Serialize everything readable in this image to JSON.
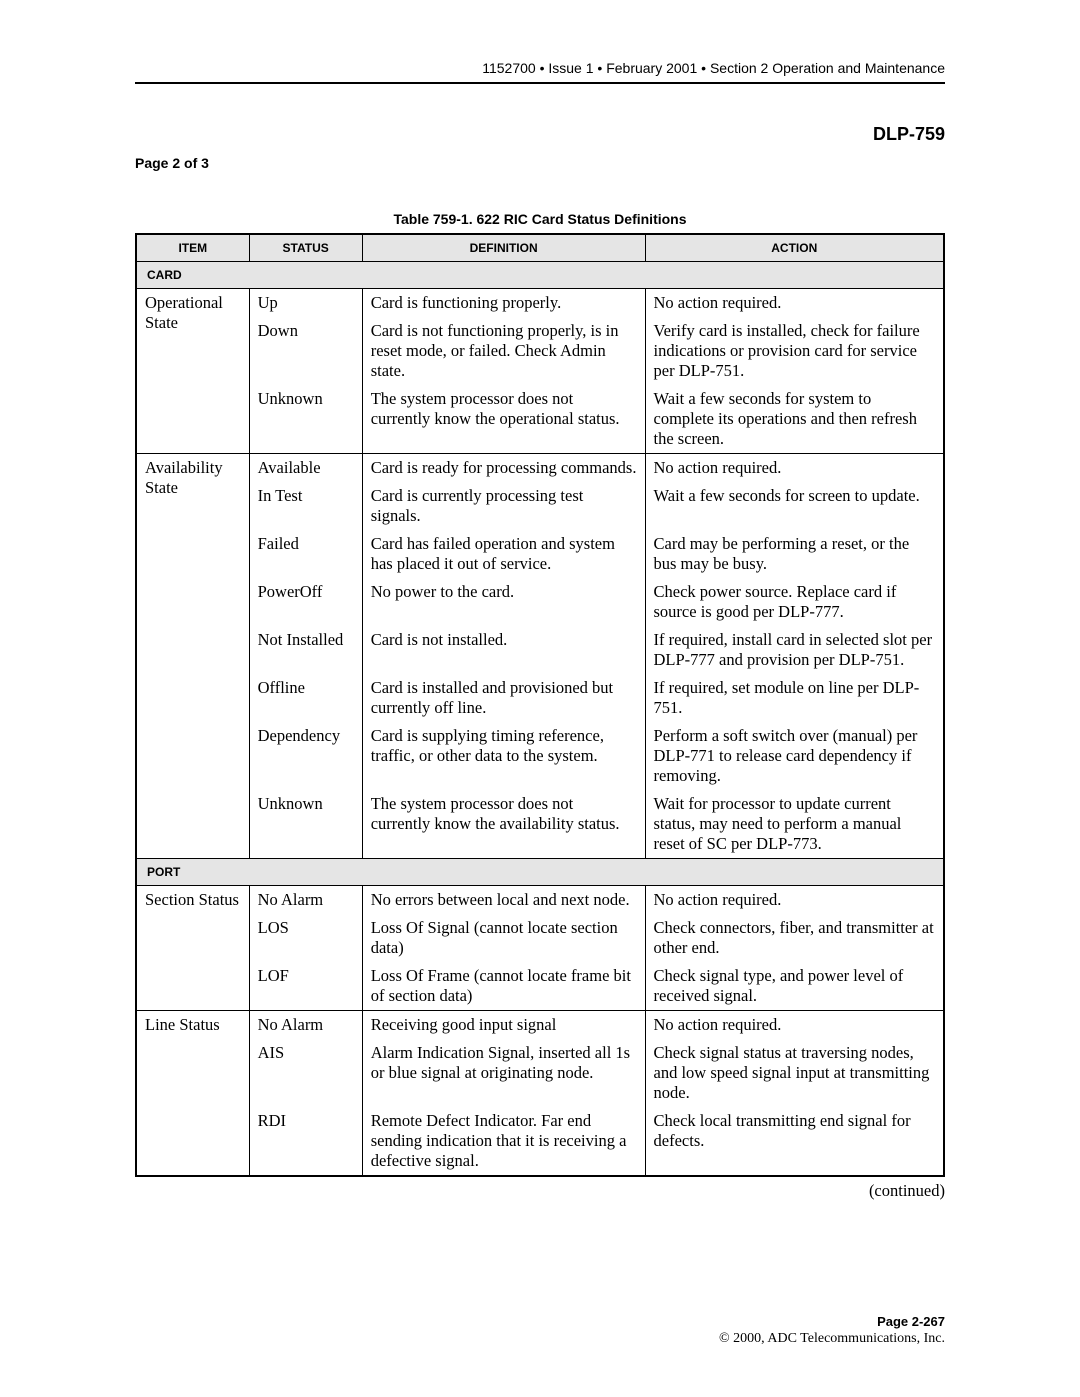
{
  "header": {
    "doc_num": "1152700",
    "issue": "Issue 1",
    "date": "February 2001",
    "section": "Section 2 Operation and Maintenance"
  },
  "dlp_code": "DLP-759",
  "page_x_of_y": "Page 2 of 3",
  "table_caption": "Table 759-1. 622 RIC Card Status Definitions",
  "columns": {
    "item": "ITEM",
    "status": "STATUS",
    "definition": "DEFINITION",
    "action": "ACTION"
  },
  "sections": {
    "card": "CARD",
    "port": "PORT"
  },
  "rows": {
    "card": {
      "op_state": {
        "item": "Operational State",
        "r1": {
          "status": "Up",
          "def": "Card is functioning properly.",
          "action": "No action required."
        },
        "r2": {
          "status": "Down",
          "def": "Card is not functioning properly, is in reset mode, or failed. Check Admin state.",
          "action": "Verify card is installed, check for failure indications or provision card for service per DLP-751."
        },
        "r3": {
          "status": "Unknown",
          "def": "The system processor does not currently know the operational status.",
          "action": "Wait a few seconds for system to complete its operations and then refresh the screen."
        }
      },
      "avail_state": {
        "item": "Availability State",
        "r1": {
          "status": "Available",
          "def": "Card is ready for processing commands.",
          "action": "No action required."
        },
        "r2": {
          "status": "In Test",
          "def": "Card is currently processing test signals.",
          "action": "Wait a few seconds for screen to update."
        },
        "r3": {
          "status": "Failed",
          "def": "Card has failed operation and system has placed it out of service.",
          "action": "Card may be performing a reset, or the bus may be busy."
        },
        "r4": {
          "status": "PowerOff",
          "def": "No power to the card.",
          "action": "Check power source. Replace card if source is good per DLP-777."
        },
        "r5": {
          "status": "Not Installed",
          "def": "Card is not installed.",
          "action": "If required, install card in selected slot per DLP-777 and provision per DLP-751."
        },
        "r6": {
          "status": "Offline",
          "def": "Card is installed and provisioned but currently off line.",
          "action": "If required, set module on line per DLP-751."
        },
        "r7": {
          "status": "Dependency",
          "def": "Card is supplying timing reference, traffic, or other data to the system.",
          "action": "Perform a soft switch over (manual) per DLP-771 to release card dependency if removing."
        },
        "r8": {
          "status": "Unknown",
          "def": "The system processor does not currently know the availability status.",
          "action": "Wait for processor to update current status, may need to perform a manual reset of SC per DLP-773."
        }
      }
    },
    "port": {
      "section_status": {
        "item": "Section Status",
        "r1": {
          "status": "No Alarm",
          "def": "No errors between local and next node.",
          "action": "No action required."
        },
        "r2": {
          "status": "LOS",
          "def": "Loss Of Signal (cannot locate section data)",
          "action": "Check connectors, fiber, and transmitter at other end."
        },
        "r3": {
          "status": "LOF",
          "def": "Loss Of Frame (cannot locate frame bit of section data)",
          "action": "Check signal type, and power level of received signal."
        }
      },
      "line_status": {
        "item": "Line Status",
        "r1": {
          "status": "No Alarm",
          "def": "Receiving good input signal",
          "action": "No action required."
        },
        "r2": {
          "status": "AIS",
          "def": "Alarm Indication Signal, inserted all 1s or blue signal at originating node.",
          "action": "Check signal status at traversing nodes, and low speed signal input at transmitting node."
        },
        "r3": {
          "status": "RDI",
          "def": "Remote Defect Indicator. Far end sending indication that it is receiving a defective signal.",
          "action": "Check local transmitting end signal for defects."
        }
      }
    }
  },
  "continued": "(continued)",
  "footer": {
    "page": "Page 2-267",
    "copyright": "© 2000, ADC Telecommunications, Inc."
  }
}
